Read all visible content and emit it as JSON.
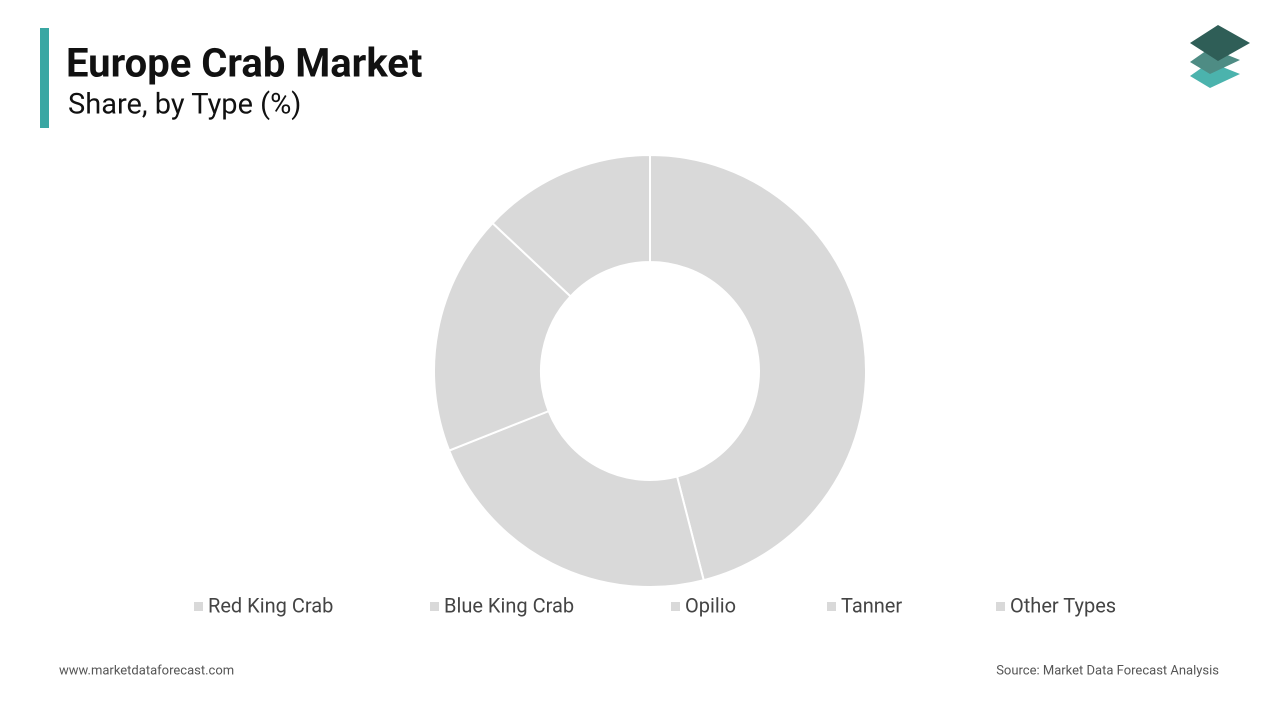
{
  "chart_data": {
    "type": "donut",
    "title": "Europe Crab Market",
    "subtitle": "Share, by Type (%)",
    "categories": [
      "Red King Crab",
      "Blue King Crab",
      "Opilio",
      "Tanner",
      "Other Types"
    ],
    "values": [
      46,
      23,
      18,
      13,
      0
    ],
    "colors": [
      "#d9d9d9",
      "#d9d9d9",
      "#d9d9d9",
      "#d9d9d9",
      "#d9d9d9"
    ],
    "legend": "bottom",
    "website": "www.marketdataforecast.com",
    "source": "Source: Market Data Forecast Analysis"
  }
}
